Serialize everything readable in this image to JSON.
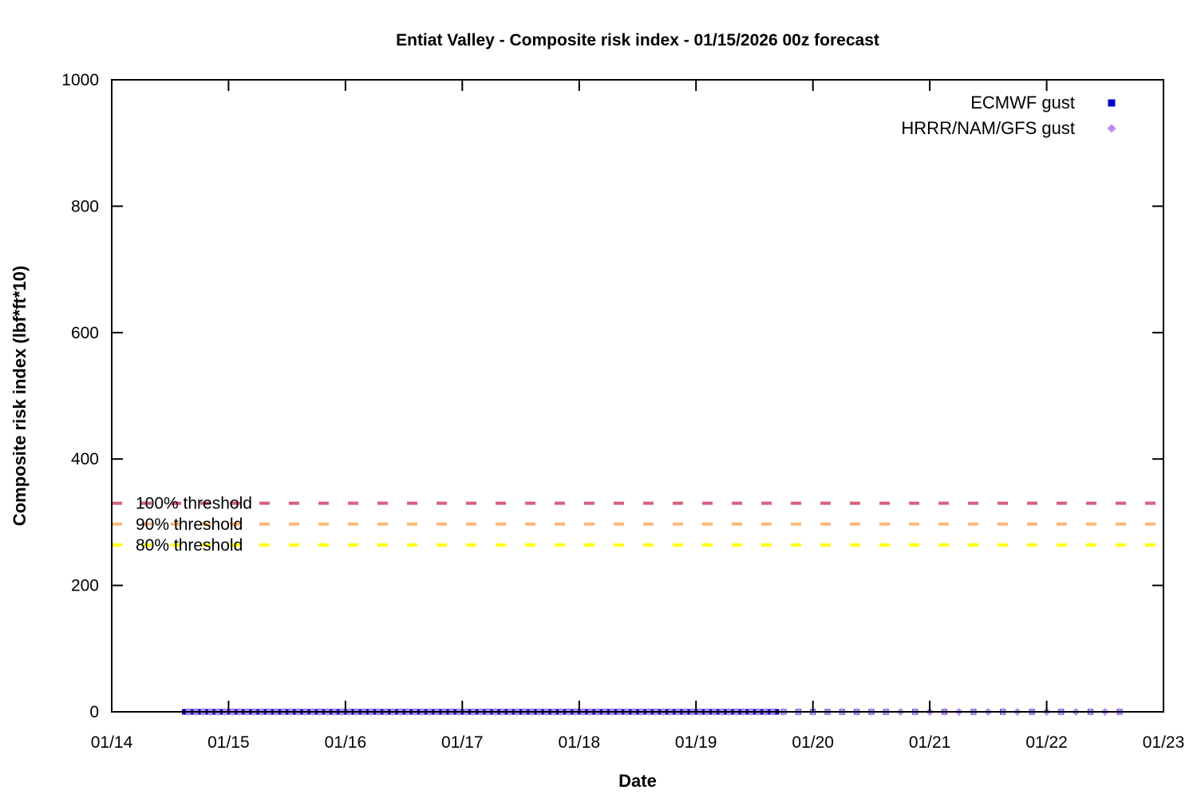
{
  "chart_data": {
    "type": "scatter",
    "title": "Entiat Valley - Composite risk index - 01/15/2026 00z forecast",
    "xlabel": "Date",
    "ylabel": "Composite risk index (lbf*ft*10)",
    "x_tick_labels": [
      "01/14",
      "01/15",
      "01/16",
      "01/17",
      "01/18",
      "01/19",
      "01/20",
      "01/21",
      "01/22",
      "01/23"
    ],
    "y_ticks": [
      0,
      200,
      400,
      600,
      800,
      1000
    ],
    "ylim": [
      0,
      1000
    ],
    "xlim_days": [
      0,
      9
    ],
    "x_axis_units_note": "x expressed as days after 01/14 00z; 0 = 01/14, 9 = 01/23",
    "grid": false,
    "legend_position": "top right inside",
    "border": "full box with inward mirrored ticks",
    "thresholds": [
      {
        "label": "100% threshold",
        "value": 330,
        "color": "#d7617c",
        "style": "dashed"
      },
      {
        "label": "90% threshold",
        "value": 297,
        "color": "#fbb878",
        "style": "dashed"
      },
      {
        "label": "80% threshold",
        "value": 264,
        "color": "#ffff00",
        "style": "dashed"
      }
    ],
    "series": [
      {
        "name": "ECMWF gust",
        "marker": "square",
        "color": "#0000cd",
        "note": "all forecast values sit at ~0 on this scale; dense sub-sampled run then 3-hourly then 6-hourly",
        "segments": [
          {
            "start_day": 0.625,
            "end_day": 5.6875,
            "step_days": 0.0625,
            "value": 0
          },
          {
            "start_day": 5.75,
            "end_day": 6.625,
            "step_days": 0.125,
            "value": 0
          },
          {
            "start_day": 6.875,
            "end_day": 8.625,
            "step_days": 0.25,
            "value": 0
          }
        ]
      },
      {
        "name": "HRRR/NAM/GFS gust",
        "marker": "diamond",
        "color": "#b98df0",
        "note": "all forecast values sit at ~0 on this scale; dense sub-sampled run then 3-hourly",
        "segments": [
          {
            "start_day": 0.65625,
            "end_day": 5.6875,
            "step_days": 0.0625,
            "value": 0
          },
          {
            "start_day": 5.75,
            "end_day": 8.625,
            "step_days": 0.125,
            "value": 0
          }
        ]
      }
    ]
  }
}
